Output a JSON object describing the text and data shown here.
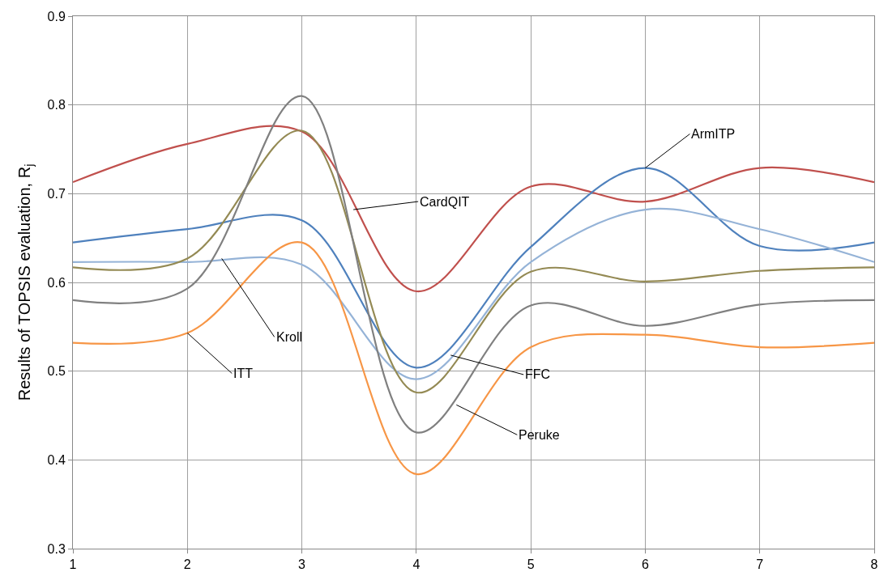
{
  "chart_data": {
    "type": "line",
    "ylabel": "Results of TOPSIS evaluation, R$_{j}$",
    "x": [
      1,
      2,
      3,
      4,
      5,
      6,
      7,
      8
    ],
    "series": [
      {
        "color": "#c0504d",
        "values": [
          0.713,
          0.756,
          0.77,
          0.59,
          0.708,
          0.691,
          0.729,
          0.713
        ]
      },
      {
        "color": "#4f81bd",
        "values": [
          0.645,
          0.66,
          0.67,
          0.504,
          0.64,
          0.729,
          0.641,
          0.645
        ]
      },
      {
        "color": "#95b3d7",
        "values": [
          0.623,
          0.623,
          0.62,
          0.491,
          0.623,
          0.682,
          0.66,
          0.623
        ]
      },
      {
        "color": "#948a54",
        "values": [
          0.617,
          0.627,
          0.771,
          0.476,
          0.612,
          0.601,
          0.613,
          0.617
        ]
      },
      {
        "color": "#808080",
        "values": [
          0.58,
          0.593,
          0.81,
          0.431,
          0.574,
          0.551,
          0.575,
          0.58
        ]
      },
      {
        "color": "#f79646",
        "values": [
          0.532,
          0.543,
          0.645,
          0.384,
          0.527,
          0.541,
          0.527,
          0.532
        ]
      }
    ],
    "annotations": [
      {
        "text": "ArmITP",
        "x": 6,
        "y": 0.729
      },
      {
        "text": "CardQIT",
        "x": 3.45,
        "y": 0.682
      },
      {
        "text": "Kroll",
        "x": 2.3,
        "y": 0.627
      },
      {
        "text": "ITT",
        "x": 2,
        "y": 0.543
      },
      {
        "text": "FFC",
        "x": 4.3,
        "y": 0.518
      },
      {
        "text": "Peruke",
        "x": 4.35,
        "y": 0.462
      }
    ],
    "xlim": [
      1,
      8
    ],
    "xticks": [
      1,
      2,
      3,
      4,
      5,
      6,
      7,
      8
    ],
    "ylim": [
      0.3,
      0.9
    ],
    "yticks": [
      0.3,
      0.4,
      0.5,
      0.6,
      0.7,
      0.8,
      0.9
    ],
    "grid": true,
    "marker": "none",
    "line_style": "solid"
  }
}
